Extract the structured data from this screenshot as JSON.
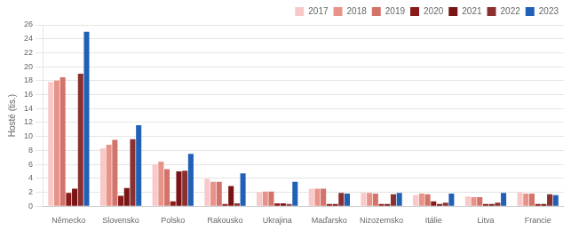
{
  "chart_data": {
    "type": "bar",
    "categories": [
      "Německo",
      "Slovensko",
      "Polsko",
      "Rakousko",
      "Ukrajina",
      "Maďarsko",
      "Nizozemsko",
      "Itálie",
      "Litva",
      "Francie"
    ],
    "series": [
      {
        "name": "2017",
        "color": "#f9c8c8",
        "values": [
          17.8,
          8.3,
          6.0,
          3.9,
          2.0,
          2.5,
          1.9,
          1.6,
          1.4,
          2.0
        ]
      },
      {
        "name": "2018",
        "color": "#e8938a",
        "values": [
          18.0,
          8.8,
          6.4,
          3.5,
          2.1,
          2.5,
          1.9,
          1.8,
          1.3,
          1.8
        ]
      },
      {
        "name": "2019",
        "color": "#d4736a",
        "values": [
          18.5,
          9.5,
          5.3,
          3.5,
          2.1,
          2.5,
          1.8,
          1.7,
          1.3,
          1.8
        ]
      },
      {
        "name": "2020",
        "color": "#8b1a1a",
        "values": [
          1.9,
          1.5,
          0.7,
          0.3,
          0.4,
          0.3,
          0.3,
          0.7,
          0.3,
          0.3
        ]
      },
      {
        "name": "2021",
        "color": "#7a1515",
        "values": [
          2.5,
          2.6,
          5.0,
          2.9,
          0.4,
          0.3,
          0.3,
          0.3,
          0.3,
          0.3
        ]
      },
      {
        "name": "2022",
        "color": "#8b3030",
        "values": [
          19.0,
          9.6,
          5.1,
          0.4,
          0.3,
          1.9,
          1.7,
          0.5,
          0.5,
          1.7
        ]
      },
      {
        "name": "2023",
        "color": "#2060b5",
        "values": [
          25.0,
          11.6,
          7.5,
          4.7,
          3.5,
          1.8,
          1.9,
          1.8,
          1.9,
          1.6
        ]
      }
    ],
    "ylabel": "Hosté (tis.)",
    "ylim": [
      0,
      26
    ],
    "yticks": [
      0,
      2,
      4,
      6,
      8,
      10,
      12,
      14,
      16,
      18,
      20,
      22,
      24,
      26
    ],
    "grid": true,
    "legend": "upper right"
  }
}
